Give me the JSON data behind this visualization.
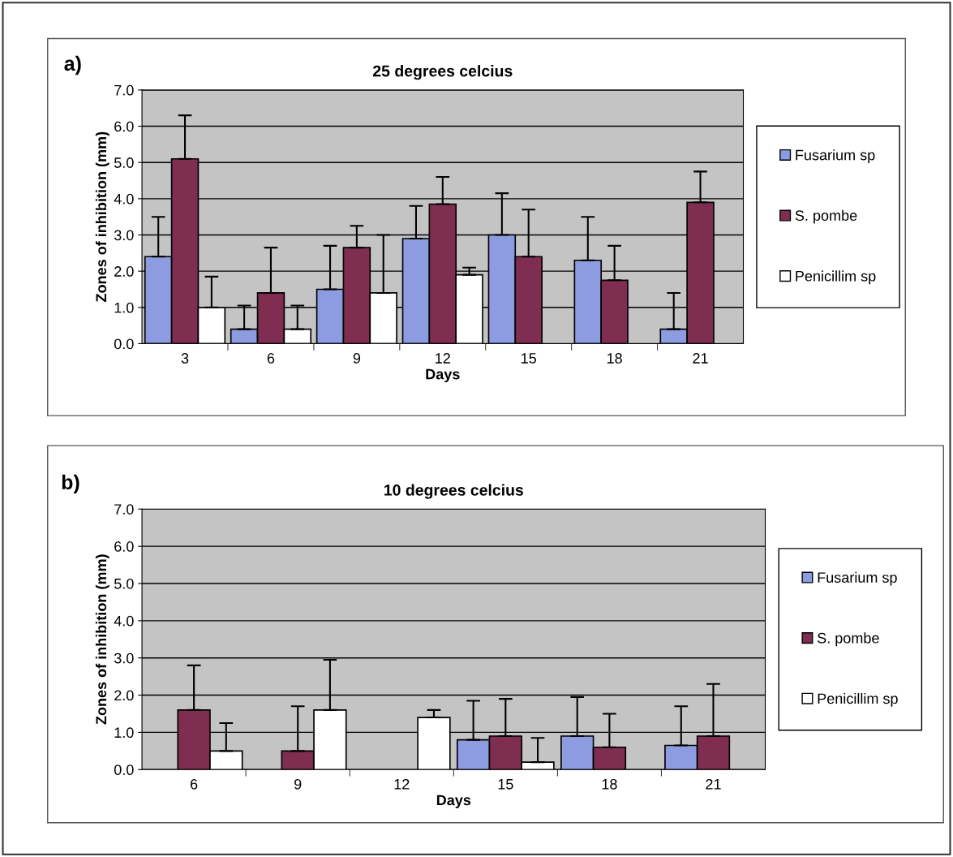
{
  "chart_data": [
    {
      "type": "bar",
      "title": "25 degrees celcius",
      "xlabel": "Days",
      "ylabel": "Zones of inhibition (mm)",
      "annotations": [
        "a)"
      ],
      "categories": [
        "3",
        "6",
        "9",
        "12",
        "15",
        "18",
        "21"
      ],
      "ylim": [
        0,
        7
      ],
      "yticks": [
        {
          "value": 0,
          "label": "0.0"
        },
        {
          "value": 1,
          "label": "1.0"
        },
        {
          "value": 2,
          "label": "2.0"
        },
        {
          "value": 3,
          "label": "3.0"
        },
        {
          "value": 4,
          "label": "4.0"
        },
        {
          "value": 5,
          "label": "5.0"
        },
        {
          "value": 6,
          "label": "6.0"
        },
        {
          "value": 7,
          "label": "7.0"
        }
      ],
      "grid": "y",
      "legend": "right",
      "series": [
        {
          "name": "Fusarium sp",
          "color": "#8d9ce0",
          "values": [
            2.4,
            0.4,
            1.5,
            2.9,
            3.0,
            2.3,
            0.4
          ],
          "errors": [
            [
              2.4,
              3.5
            ],
            [
              0.4,
              1.05
            ],
            [
              1.5,
              2.7
            ],
            [
              2.9,
              3.8
            ],
            [
              3.0,
              4.15
            ],
            [
              2.3,
              3.5
            ],
            [
              0.4,
              1.4
            ]
          ]
        },
        {
          "name": "S. pombe",
          "color": "#7f2d50",
          "values": [
            5.1,
            1.4,
            2.65,
            3.85,
            2.4,
            1.75,
            3.9
          ],
          "errors": [
            [
              5.1,
              6.3
            ],
            [
              1.4,
              2.65
            ],
            [
              2.65,
              3.25
            ],
            [
              3.85,
              4.6
            ],
            [
              2.4,
              3.7
            ],
            [
              1.75,
              2.7
            ],
            [
              3.9,
              4.75
            ]
          ]
        },
        {
          "name": "Penicillim sp",
          "color": "#ffffff",
          "values": [
            1.0,
            0.4,
            1.4,
            1.9,
            null,
            null,
            null
          ],
          "errors": [
            [
              1.0,
              1.85
            ],
            [
              0.4,
              1.05
            ],
            [
              1.4,
              3.0
            ],
            [
              1.9,
              2.1
            ],
            null,
            null,
            null
          ]
        }
      ]
    },
    {
      "type": "bar",
      "title": "10 degrees celcius",
      "xlabel": "Days",
      "ylabel": "Zones of inhibition (mm)",
      "annotations": [
        "b)"
      ],
      "categories": [
        "6",
        "9",
        "12",
        "15",
        "18",
        "21"
      ],
      "ylim": [
        0,
        7
      ],
      "yticks": [
        {
          "value": 0,
          "label": "0.0"
        },
        {
          "value": 1,
          "label": "1.0"
        },
        {
          "value": 2,
          "label": "2.0"
        },
        {
          "value": 3,
          "label": "3.0"
        },
        {
          "value": 4,
          "label": "4.0"
        },
        {
          "value": 5,
          "label": "5.0"
        },
        {
          "value": 6,
          "label": "6.0"
        },
        {
          "value": 7,
          "label": "7.0"
        }
      ],
      "grid": "y",
      "legend": "right",
      "series": [
        {
          "name": "Fusarium sp",
          "color": "#8d9ce0",
          "values": [
            null,
            null,
            null,
            0.8,
            0.9,
            0.65
          ],
          "errors": [
            null,
            null,
            null,
            [
              0.8,
              1.85
            ],
            [
              0.9,
              1.95
            ],
            [
              0.65,
              1.7
            ]
          ]
        },
        {
          "name": "S. pombe",
          "color": "#7f2d50",
          "values": [
            1.6,
            0.5,
            null,
            0.9,
            0.6,
            0.9
          ],
          "errors": [
            [
              1.6,
              2.8
            ],
            [
              0.5,
              1.7
            ],
            null,
            [
              0.9,
              1.9
            ],
            [
              0.6,
              1.5
            ],
            [
              0.9,
              2.3
            ]
          ]
        },
        {
          "name": "Penicillim sp",
          "color": "#ffffff",
          "values": [
            0.5,
            1.6,
            1.4,
            0.2,
            null,
            null
          ],
          "errors": [
            [
              0.5,
              1.25
            ],
            [
              1.6,
              2.95
            ],
            [
              1.4,
              1.6
            ],
            [
              0.2,
              0.85
            ],
            null,
            null
          ]
        }
      ]
    }
  ]
}
